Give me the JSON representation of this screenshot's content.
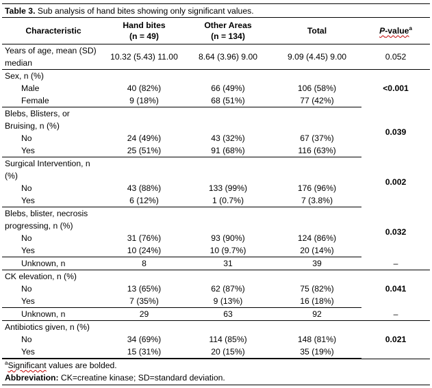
{
  "caption": {
    "label": "Table 3.",
    "text": " Sub analysis of hand bites showing only significant values."
  },
  "header": {
    "characteristic": "Characteristic",
    "hand_line1": "Hand bites",
    "hand_line2": "(n = 49)",
    "other_line1": "Other Areas",
    "other_line2": "(n = 134)",
    "total": "Total",
    "p_italic": "P",
    "p_rest": "-value",
    "p_sup": "a"
  },
  "rows": {
    "age": {
      "label1": "Years of age, mean (SD)",
      "label2": "median",
      "hand": "10.32 (5.43) 11.00",
      "other": "8.64 (3.96) 9.00",
      "total": "9.09 (4.45) 9.00",
      "p": "0.052"
    },
    "sex": {
      "label": "Sex, n (%)",
      "male": {
        "label": "Male",
        "hand": "40 (82%)",
        "other": "66 (49%)",
        "total": "106 (58%)"
      },
      "female": {
        "label": "Female",
        "hand": "9 (18%)",
        "other": "68 (51%)",
        "total": "77 (42%)"
      },
      "p": "<0.001"
    },
    "blebs": {
      "label1": "Blebs, Blisters, or",
      "label2": "Bruising, n (%)",
      "no": {
        "label": "No",
        "hand": "24 (49%)",
        "other": "43 (32%)",
        "total": "67 (37%)"
      },
      "yes": {
        "label": "Yes",
        "hand": "25 (51%)",
        "other": "91 (68%)",
        "total": "116 (63%)"
      },
      "p": "0.039"
    },
    "surgical": {
      "label1": "Surgical Intervention, n",
      "label2": "(%)",
      "no": {
        "label": "No",
        "hand": "43 (88%)",
        "other": "133 (99%)",
        "total": "176 (96%)"
      },
      "yes": {
        "label": "Yes",
        "hand": "6 (12%)",
        "other": "1 (0.7%)",
        "total": "7 (3.8%)"
      },
      "p": "0.002"
    },
    "progress": {
      "label1": "Blebs, blister, necrosis",
      "label2": "progressing, n (%)",
      "no": {
        "label": "No",
        "hand": "31 (76%)",
        "other": "93 (90%)",
        "total": "124 (86%)"
      },
      "yes": {
        "label": "Yes",
        "hand": "10 (24%)",
        "other": "10 (9.7%)",
        "total": "20 (14%)"
      },
      "p": "0.032",
      "unknown": {
        "label": "Unknown, n",
        "hand": "8",
        "other": "31",
        "total": "39",
        "p": "–"
      }
    },
    "ck": {
      "label": "CK elevation, n (%)",
      "no": {
        "label": "No",
        "hand": "13 (65%)",
        "other": "62 (87%)",
        "total": "75 (82%)"
      },
      "yes": {
        "label": "Yes",
        "hand": "7 (35%)",
        "other": "9 (13%)",
        "total": "16 (18%)"
      },
      "p": "0.041",
      "unknown": {
        "label": "Unknown, n",
        "hand": "29",
        "other": "63",
        "total": "92",
        "p": "–"
      }
    },
    "antibiotics": {
      "label": "Antibiotics given, n (%)",
      "no": {
        "label": "No",
        "hand": "34 (69%)",
        "other": "114 (85%)",
        "total": "148 (81%)"
      },
      "yes": {
        "label": "Yes",
        "hand": "15 (31%)",
        "other": "20 (15%)",
        "total": "35 (19%)"
      },
      "p": "0.021"
    }
  },
  "footnotes": {
    "sig_sup": "a",
    "sig_word": "Significant",
    "sig_rest": " values are bolded.",
    "abbr_label": "Abbreviation:",
    "abbr_text": " CK=creatine kinase; SD=standard deviation."
  }
}
